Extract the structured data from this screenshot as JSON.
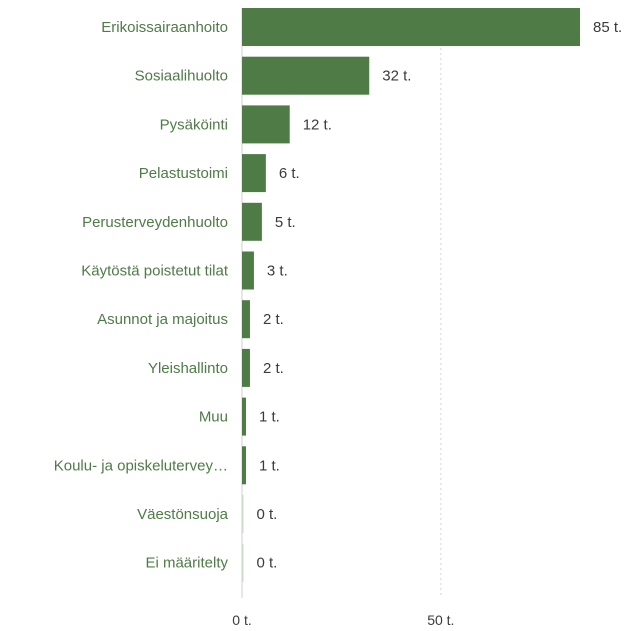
{
  "chart_data": {
    "type": "bar",
    "orientation": "horizontal",
    "categories": [
      "Erikoissairaanhoito",
      "Sosiaalihuolto",
      "Pysäköinti",
      "Pelastustoimi",
      "Perusterveydenhuolto",
      "Käytöstä poistetut tilat",
      "Asunnot ja majoitus",
      "Yleishallinto",
      "Muu",
      "Koulu- ja opiskeluterveу…",
      "Väestönsuoja",
      "Ei määritelty"
    ],
    "values": [
      85,
      32,
      12,
      6,
      5,
      3,
      2,
      2,
      1,
      1,
      0,
      0
    ],
    "value_labels": [
      "85 t.",
      "32 t.",
      "12 t.",
      "6 t.",
      "5 t.",
      "3 t.",
      "2 t.",
      "2 t.",
      "1 t.",
      "1 t.",
      "0 t.",
      "0 t."
    ],
    "x_ticks": [
      0,
      50
    ],
    "x_tick_labels": [
      "0 t.",
      "50 t."
    ],
    "xlim": [
      0,
      85
    ],
    "grid": true,
    "bar_color": "#4f7b47",
    "label_color": "#4f7b47",
    "value_color": "#3b3b3b"
  }
}
